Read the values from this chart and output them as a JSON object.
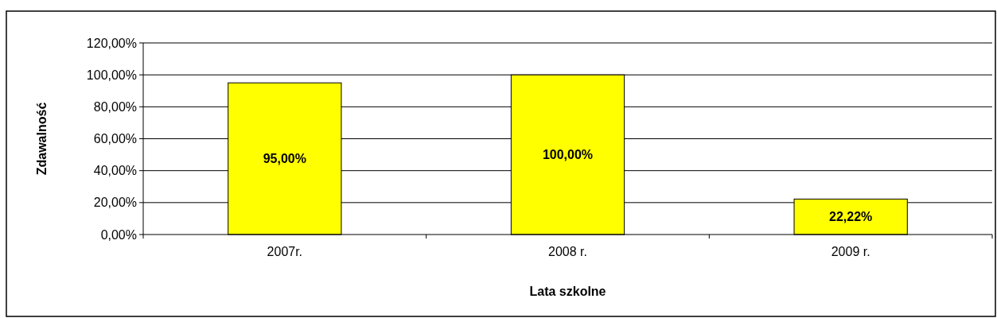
{
  "chart_data": {
    "type": "bar",
    "xlabel": "Lata szkolne",
    "ylabel": "Zdawalność",
    "categories": [
      "2007r.",
      "2008 r.",
      "2009 r."
    ],
    "values": [
      95,
      100,
      22.22
    ],
    "color": "#ffff00",
    "value_labels": [
      "95,00%",
      "100,00%",
      "22,22%"
    ],
    "ylim": [
      0,
      120
    ],
    "yticks": [
      {
        "value": 0,
        "label": "0,00%"
      },
      {
        "value": 20,
        "label": "20,00%"
      },
      {
        "value": 40,
        "label": "40,00%"
      },
      {
        "value": 60,
        "label": "60,00%"
      },
      {
        "value": 80,
        "label": "80,00%"
      },
      {
        "value": 100,
        "label": "100,00%"
      },
      {
        "value": 120,
        "label": "120,00%"
      }
    ],
    "grid": "y"
  }
}
